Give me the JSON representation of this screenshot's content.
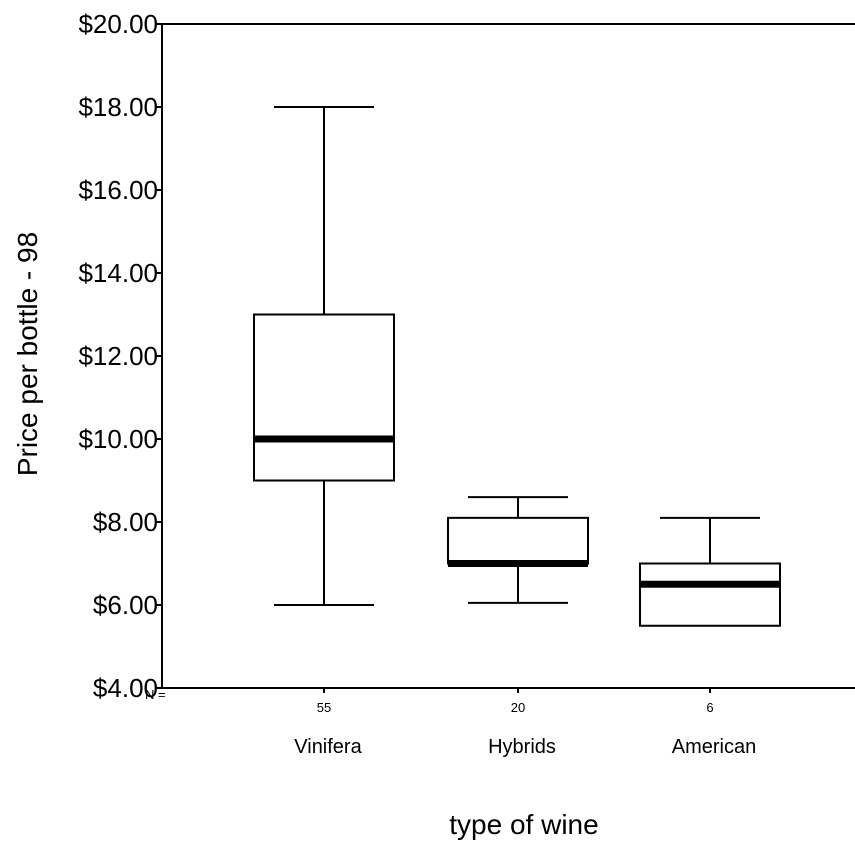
{
  "chart_data": {
    "type": "boxplot",
    "title": "",
    "xlabel": "type of wine",
    "ylabel": "Price per bottle - 98",
    "ylim": [
      4,
      20
    ],
    "yticks": [
      4,
      6,
      8,
      10,
      12,
      14,
      16,
      18,
      20
    ],
    "ytick_labels": [
      "$4.00",
      "$6.00",
      "$8.00",
      "$10.00",
      "$12.00",
      "$14.00",
      "$16.00",
      "$18.00",
      "$20.00"
    ],
    "n_prefix": "N =",
    "grid": false,
    "categories": [
      "Vinifera",
      "Hybrids",
      "American"
    ],
    "n": [
      "55",
      "20",
      "6"
    ],
    "boxes": [
      {
        "category": "Vinifera",
        "whisker_low": 6.0,
        "q1": 9.0,
        "median": 10.0,
        "q3": 13.0,
        "whisker_high": 18.0
      },
      {
        "category": "Hybrids",
        "whisker_low": 6.05,
        "q1": 7.0,
        "median": 7.0,
        "q3": 8.1,
        "whisker_high": 8.6
      },
      {
        "category": "American",
        "whisker_low": 5.5,
        "q1": 5.5,
        "median": 6.5,
        "q3": 7.0,
        "whisker_high": 8.1
      }
    ]
  }
}
